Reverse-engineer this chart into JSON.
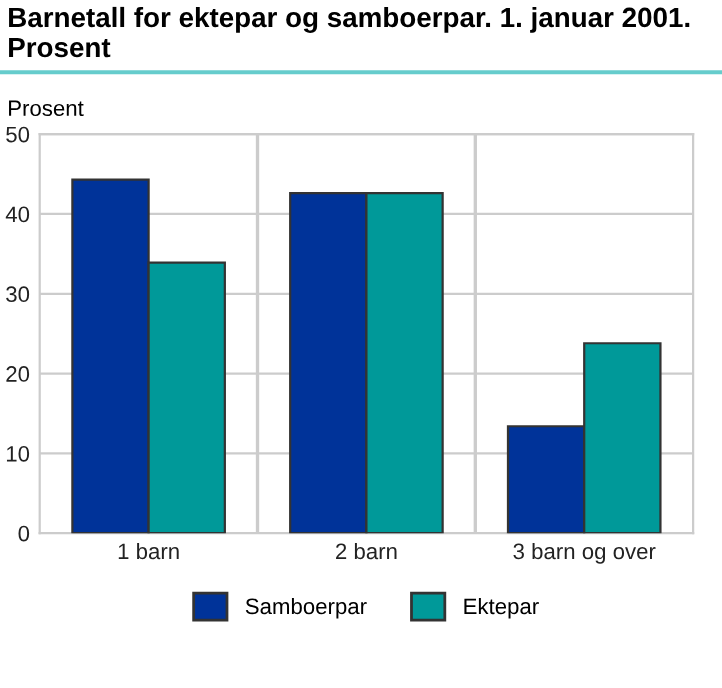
{
  "chart_data": {
    "type": "bar",
    "title": "Barnetall for ektepar og samboerpar. 1. januar 2001.\nProsent",
    "ylabel": "Prosent",
    "categories": [
      "1 barn",
      "2 barn",
      "3 barn og over"
    ],
    "series": [
      {
        "name": "Samboerpar",
        "color": "#003399",
        "values": [
          44.3,
          42.6,
          13.4
        ]
      },
      {
        "name": "Ektepar",
        "color": "#009999",
        "values": [
          33.9,
          42.6,
          23.8
        ]
      }
    ],
    "ylim": [
      0,
      50
    ],
    "yticks": [
      0,
      10,
      20,
      30,
      40,
      50
    ],
    "grid": true,
    "legend": "bottom"
  }
}
